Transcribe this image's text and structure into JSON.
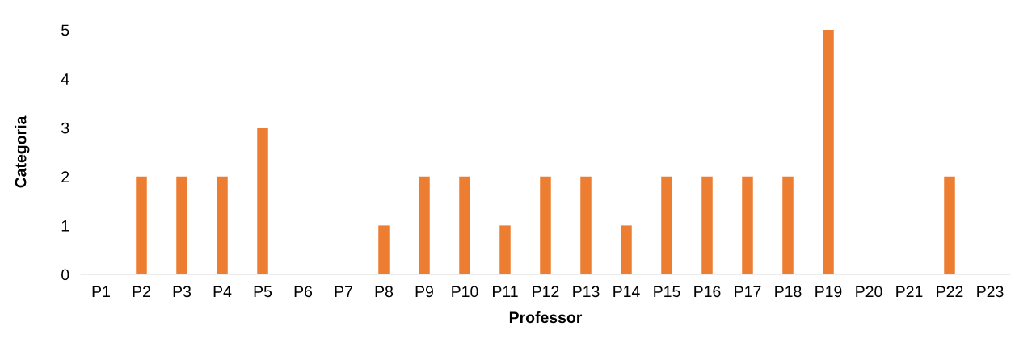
{
  "chart_data": {
    "type": "bar",
    "xlabel": "Professor",
    "ylabel": "Categoria",
    "categories": [
      "P1",
      "P2",
      "P3",
      "P4",
      "P5",
      "P6",
      "P7",
      "P8",
      "P9",
      "P10",
      "P11",
      "P12",
      "P13",
      "P14",
      "P15",
      "P16",
      "P17",
      "P18",
      "P19",
      "P20",
      "P21",
      "P22",
      "P23"
    ],
    "values": [
      0,
      2,
      2,
      2,
      3,
      0,
      0,
      1,
      2,
      2,
      1,
      2,
      2,
      1,
      2,
      2,
      2,
      2,
      5,
      0,
      0,
      2,
      0
    ],
    "color": "#ed7d31",
    "ylim": [
      0,
      5
    ],
    "yticks": [
      0,
      1,
      2,
      3,
      4,
      5
    ],
    "grid": false,
    "legend": false
  }
}
